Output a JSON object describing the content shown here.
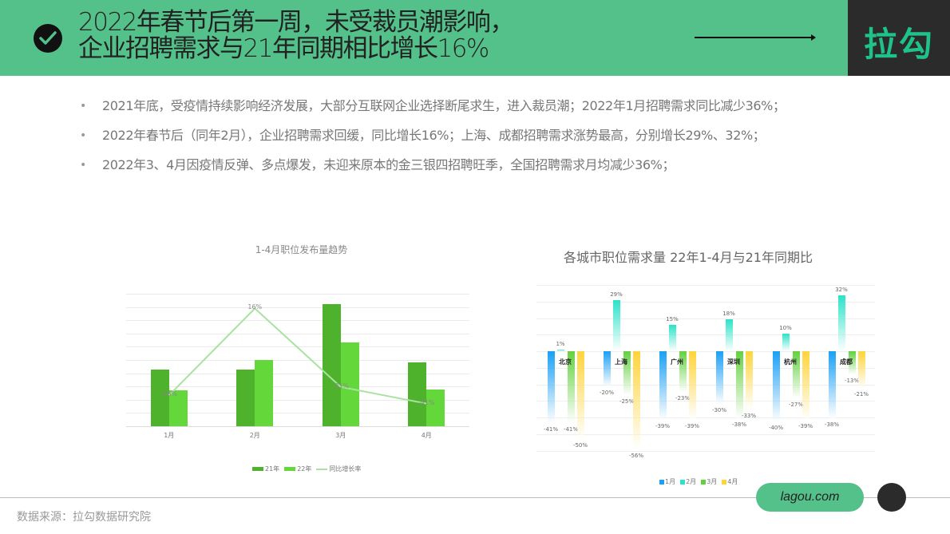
{
  "header": {
    "title_line1": "2022年春节后第一周，未受裁员潮影响，",
    "title_line2": "企业招聘需求与21年同期相比增长16%",
    "logo": "拉勾",
    "colors": {
      "bar": "#54c08a",
      "logo_bg": "#2b2b2b",
      "logo_text": "#1ec38a"
    }
  },
  "bullets": [
    "2021年底，受疫情持续影响经济发展，大部分互联网企业选择断尾求生，进入裁员潮；2022年1月招聘需求同比减少36%；",
    "2022年春节后（同年2月），企业招聘需求回缓，同比增长16%；上海、成都招聘需求涨势最高，分别增长29%、32%；",
    "2022年3、4月因疫情反弹、多点爆发，未迎来原本的金三银四招聘旺季，全国招聘需求月均减少36%；"
  ],
  "footer": {
    "source": "数据来源：拉勾数据研究院",
    "url": "lagou.com"
  },
  "chart_data": [
    {
      "type": "bar",
      "title": "1-4月职位发布量趋势",
      "categories": [
        "1月",
        "2月",
        "3月",
        "4月"
      ],
      "series": [
        {
          "name": "21年",
          "kind": "bar",
          "color": "#4eb22c",
          "values": [
            43,
            43,
            92,
            48
          ]
        },
        {
          "name": "22年",
          "kind": "bar",
          "color": "#64d83a",
          "values": [
            27,
            50,
            63,
            28
          ]
        },
        {
          "name": "同比增长率",
          "kind": "line",
          "color": "#a8e3a0",
          "values": [
            -36,
            16,
            -31,
            -41
          ],
          "labels": [
            "-36%",
            "16%",
            "-31%",
            "-41%"
          ]
        }
      ],
      "xlabel": "",
      "ylabel": "",
      "grid": true,
      "legend_position": "bottom"
    },
    {
      "type": "bar",
      "title": "各城市职位需求量 22年1-4月与21年同期比",
      "categories": [
        "北京",
        "上海",
        "广州",
        "深圳",
        "杭州",
        "成都"
      ],
      "series": [
        {
          "name": "1月",
          "color": "#1aa0f5",
          "values": [
            -41,
            -20,
            -39,
            -30,
            -40,
            -38
          ]
        },
        {
          "name": "2月",
          "color": "#2ae3c8",
          "values": [
            1,
            29,
            15,
            18,
            10,
            32
          ]
        },
        {
          "name": "3月",
          "color": "#63d13e",
          "values": [
            -41,
            -25,
            -23,
            -38,
            -27,
            -13
          ]
        },
        {
          "name": "4月",
          "color": "#ffd43b",
          "values": [
            -50,
            -56,
            -39,
            -33,
            -39,
            -21
          ]
        }
      ],
      "unit": "%",
      "grid": true,
      "legend_position": "bottom"
    }
  ]
}
